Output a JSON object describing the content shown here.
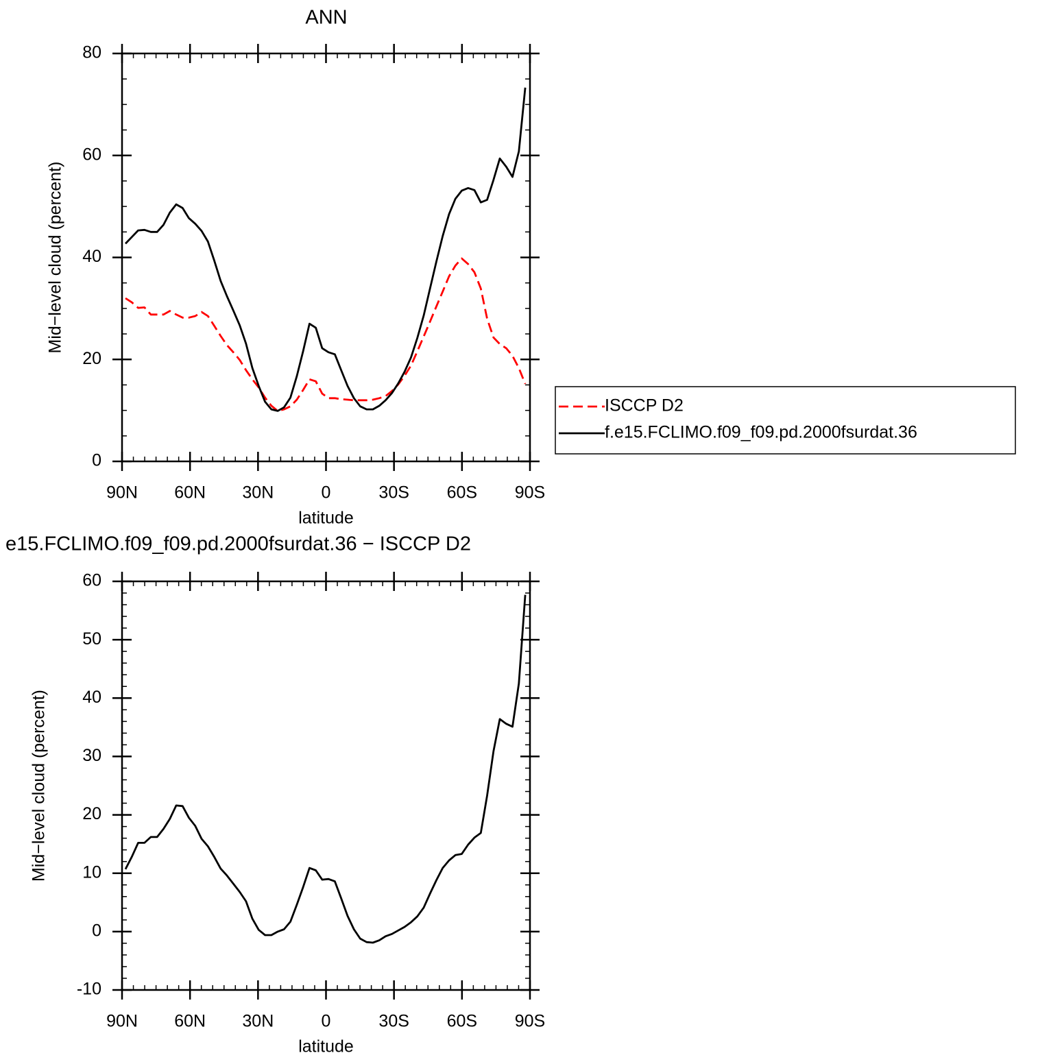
{
  "chart_data": [
    {
      "type": "line",
      "title": "ANN",
      "x_label": "latitude",
      "y_label": "Mid−level cloud (percent)",
      "x": [
        88.5,
        85.7,
        82.9,
        80.1,
        77.3,
        74.5,
        71.7,
        68.9,
        66.1,
        63.3,
        60.5,
        57.7,
        54.9,
        52.1,
        49.3,
        46.5,
        43.7,
        40.9,
        38.1,
        35.3,
        32.5,
        29.7,
        26.9,
        24.1,
        21.3,
        18.5,
        15.7,
        12.9,
        10.1,
        7.3,
        4.5,
        1.7,
        -1.1,
        -3.9,
        -6.7,
        -9.5,
        -12.3,
        -15.1,
        -17.9,
        -20.7,
        -23.5,
        -26.3,
        -29.1,
        -31.9,
        -34.7,
        -37.5,
        -40.3,
        -43.1,
        -45.9,
        -48.7,
        -51.5,
        -54.3,
        -57.1,
        -59.9,
        -62.7,
        -65.5,
        -68.3,
        -71.1,
        -73.9,
        -76.7,
        -79.5,
        -82.3,
        -85.1,
        -87.9
      ],
      "xlim": [
        90,
        -90
      ],
      "xticks": [
        {
          "value": 90,
          "label": "90N"
        },
        {
          "value": 60,
          "label": "60N"
        },
        {
          "value": 30,
          "label": "30N"
        },
        0,
        {
          "value": -30,
          "label": "30S"
        },
        {
          "value": -60,
          "label": "60S"
        },
        {
          "value": -90,
          "label": "90S"
        }
      ],
      "ylim": [
        0,
        80
      ],
      "yticks": [
        0,
        20,
        40,
        60,
        80
      ],
      "legend": "right",
      "series": [
        {
          "name": "ISCCP D2",
          "color": "#ff0000",
          "linestyle": "dashed",
          "values": [
            32,
            31.2,
            30.1,
            30.2,
            28.8,
            28.8,
            28.8,
            29.5,
            28.8,
            28.2,
            28.2,
            28.5,
            29.3,
            28.5,
            26.6,
            24.6,
            22.8,
            21.4,
            19.9,
            17.9,
            16.1,
            14.5,
            12.5,
            10.9,
            9.9,
            10.2,
            10.8,
            12.1,
            14,
            16.1,
            15.7,
            13.3,
            12.4,
            12.4,
            12.2,
            12.1,
            12,
            12,
            12,
            12.1,
            12.4,
            12.8,
            13.8,
            15.1,
            16.8,
            18.8,
            21.6,
            24.5,
            27.4,
            30.4,
            33.3,
            36.3,
            38.4,
            39.8,
            38.7,
            37.1,
            33.9,
            28,
            24.3,
            23,
            22.2,
            20.7,
            18.3,
            15.2
          ]
        },
        {
          "name": "f.e15.FCLIMO.f09_f09.pd.2000fsurdat.36",
          "color": "#000000",
          "linestyle": "solid",
          "values": [
            42.7,
            44,
            45.3,
            45.4,
            45,
            45,
            46.4,
            48.8,
            50.4,
            49.7,
            47.7,
            46.6,
            45.2,
            43.1,
            39.4,
            35.4,
            32.4,
            29.6,
            26.7,
            23.1,
            18.3,
            14.8,
            11.7,
            10.2,
            9.9,
            10.6,
            12.5,
            16.7,
            21.6,
            27,
            26.2,
            22.2,
            21.4,
            21,
            17.9,
            14.8,
            12.4,
            10.8,
            10.2,
            10.2,
            10.9,
            12,
            13.4,
            15.3,
            17.6,
            20.4,
            24.2,
            28.6,
            33.9,
            39.2,
            44.2,
            48.5,
            51.5,
            53.1,
            53.6,
            53.2,
            50.8,
            51.3,
            55.2,
            59.4,
            57.8,
            55.8,
            60.8,
            73.3
          ]
        }
      ]
    },
    {
      "type": "line",
      "title": "e15.FCLIMO.f09_f09.pd.2000fsurdat.36 − ISCCP D2",
      "x_label": "latitude",
      "y_label": "Mid−level cloud (percent)",
      "x": [
        88.5,
        85.7,
        82.9,
        80.1,
        77.3,
        74.5,
        71.7,
        68.9,
        66.1,
        63.3,
        60.5,
        57.7,
        54.9,
        52.1,
        49.3,
        46.5,
        43.7,
        40.9,
        38.1,
        35.3,
        32.5,
        29.7,
        26.9,
        24.1,
        21.3,
        18.5,
        15.7,
        12.9,
        10.1,
        7.3,
        4.5,
        1.7,
        -1.1,
        -3.9,
        -6.7,
        -9.5,
        -12.3,
        -15.1,
        -17.9,
        -20.7,
        -23.5,
        -26.3,
        -29.1,
        -31.9,
        -34.7,
        -37.5,
        -40.3,
        -43.1,
        -45.9,
        -48.7,
        -51.5,
        -54.3,
        -57.1,
        -59.9,
        -62.7,
        -65.5,
        -68.3,
        -71.1,
        -73.9,
        -76.7,
        -79.5,
        -82.3,
        -85.1,
        -87.9
      ],
      "xlim": [
        90,
        -90
      ],
      "xticks": [
        {
          "value": 90,
          "label": "90N"
        },
        {
          "value": 60,
          "label": "60N"
        },
        {
          "value": 30,
          "label": "30N"
        },
        0,
        {
          "value": -30,
          "label": "30S"
        },
        {
          "value": -60,
          "label": "60S"
        },
        {
          "value": -90,
          "label": "90S"
        }
      ],
      "ylim": [
        -10,
        60
      ],
      "yticks": [
        -10,
        0,
        10,
        20,
        30,
        40,
        50,
        60
      ],
      "series": [
        {
          "color": "#000000",
          "linestyle": "solid",
          "values": [
            10.7,
            12.8,
            15.2,
            15.2,
            16.2,
            16.2,
            17.6,
            19.3,
            21.6,
            21.5,
            19.5,
            18.1,
            15.9,
            14.6,
            12.8,
            10.8,
            9.6,
            8.2,
            6.8,
            5.2,
            2.2,
            0.3,
            -0.6,
            -0.6,
            0,
            0.4,
            1.7,
            4.6,
            7.6,
            10.9,
            10.5,
            8.9,
            9,
            8.6,
            5.7,
            2.7,
            0.4,
            -1.2,
            -1.8,
            -1.9,
            -1.5,
            -0.8,
            -0.4,
            0.2,
            0.8,
            1.6,
            2.6,
            4.1,
            6.5,
            8.8,
            10.9,
            12.2,
            13.1,
            13.3,
            14.9,
            16.1,
            16.9,
            23.3,
            30.9,
            36.4,
            35.6,
            35.1,
            42.5,
            57.7
          ]
        }
      ]
    }
  ]
}
